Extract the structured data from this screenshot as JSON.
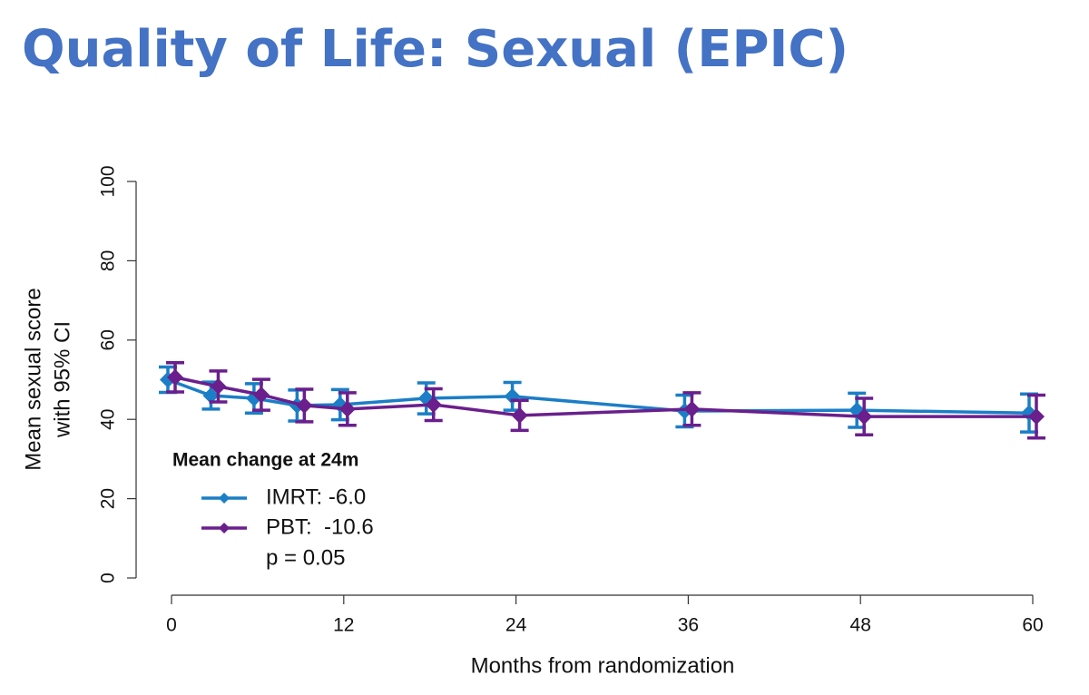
{
  "chart_data": {
    "type": "line",
    "title": "Quality of Life: Sexual (EPIC)",
    "ylabel": [
      "Mean sexual score",
      "with 95% CI"
    ],
    "xlabel": "Months from randomization",
    "x": [
      0,
      3,
      6,
      9,
      12,
      18,
      24,
      36,
      48,
      60
    ],
    "series": [
      {
        "name": "IMRT: -6.0",
        "color": "#1b7ec6",
        "values": [
          50,
          46,
          45.3,
          43.5,
          43.7,
          45.3,
          45.8,
          42.1,
          42.3,
          41.6
        ],
        "errors": [
          3.2,
          3.4,
          3.7,
          3.9,
          3.8,
          3.9,
          3.5,
          4,
          4.3,
          4.8
        ]
      },
      {
        "name": "PBT:  -10.6",
        "color": "#6a1f8c",
        "values": [
          50.6,
          48.3,
          46.2,
          43.5,
          42.6,
          43.7,
          41,
          42.6,
          40.7,
          40.7
        ],
        "errors": [
          3.7,
          3.9,
          3.9,
          4.1,
          4.1,
          4,
          3.8,
          4.1,
          4.6,
          5.4
        ]
      }
    ],
    "legend_title": "Mean change at 24m",
    "annotation": "p = 0.05",
    "xlim": [
      0,
      60
    ],
    "xticks": [
      0,
      12,
      24,
      36,
      48,
      60
    ],
    "ylim": [
      0,
      100
    ],
    "yticks": [
      0,
      20,
      40,
      60,
      80,
      100
    ],
    "legend": "lower left"
  }
}
